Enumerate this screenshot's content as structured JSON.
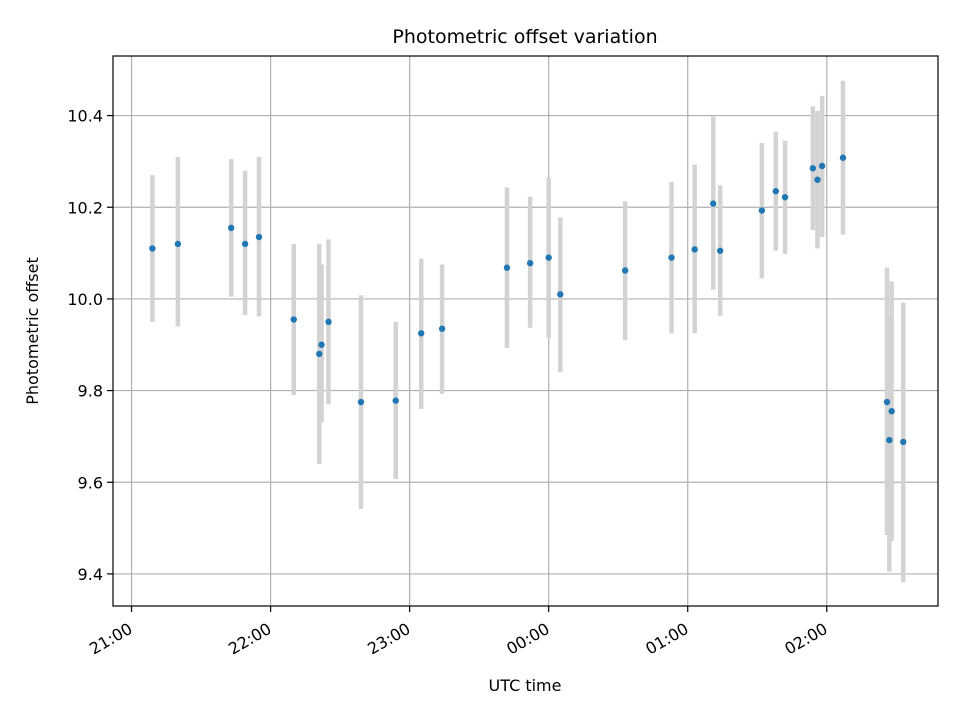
{
  "chart_data": {
    "type": "scatter",
    "title": "Photometric offset variation",
    "xlabel": "UTC time",
    "ylabel": "Photometric offset",
    "x_ticks": [
      "21:00",
      "22:00",
      "23:00",
      "00:00",
      "01:00",
      "02:00"
    ],
    "y_ticks": [
      "9.4",
      "9.6",
      "9.8",
      "10.0",
      "10.2",
      "10.4"
    ],
    "ylim": [
      9.33,
      10.53
    ],
    "xlim": [
      "20:52",
      "02:48"
    ],
    "grid": true,
    "colors": {
      "point": "#1f77b4",
      "errorbar": "#d3d3d3",
      "grid": "#b0b0b0"
    },
    "points": [
      {
        "x": "21:09",
        "y": 10.11,
        "lo": 9.95,
        "hi": 10.27
      },
      {
        "x": "21:20",
        "y": 10.12,
        "lo": 9.94,
        "hi": 10.31
      },
      {
        "x": "21:43",
        "y": 10.155,
        "lo": 10.005,
        "hi": 10.305
      },
      {
        "x": "21:49",
        "y": 10.12,
        "lo": 9.965,
        "hi": 10.28
      },
      {
        "x": "21:55",
        "y": 10.135,
        "lo": 9.962,
        "hi": 10.31
      },
      {
        "x": "22:10",
        "y": 9.955,
        "lo": 9.79,
        "hi": 10.12
      },
      {
        "x": "22:21",
        "y": 9.88,
        "lo": 9.64,
        "hi": 10.12
      },
      {
        "x": "22:22",
        "y": 9.9,
        "lo": 9.73,
        "hi": 10.075
      },
      {
        "x": "22:25",
        "y": 9.95,
        "lo": 9.77,
        "hi": 10.13
      },
      {
        "x": "22:39",
        "y": 9.775,
        "lo": 9.542,
        "hi": 10.008
      },
      {
        "x": "22:54",
        "y": 9.778,
        "lo": 9.607,
        "hi": 9.95
      },
      {
        "x": "23:05",
        "y": 9.925,
        "lo": 9.76,
        "hi": 10.088
      },
      {
        "x": "23:14",
        "y": 9.935,
        "lo": 9.793,
        "hi": 10.075
      },
      {
        "x": "23:42",
        "y": 10.068,
        "lo": 9.893,
        "hi": 10.243
      },
      {
        "x": "23:52",
        "y": 10.078,
        "lo": 9.937,
        "hi": 10.223
      },
      {
        "x": "00:00",
        "y": 10.09,
        "lo": 9.915,
        "hi": 10.265
      },
      {
        "x": "00:05",
        "y": 10.01,
        "lo": 9.84,
        "hi": 10.178
      },
      {
        "x": "00:33",
        "y": 10.062,
        "lo": 9.91,
        "hi": 10.213
      },
      {
        "x": "00:53",
        "y": 10.09,
        "lo": 9.925,
        "hi": 10.255
      },
      {
        "x": "01:03",
        "y": 10.108,
        "lo": 9.925,
        "hi": 10.293
      },
      {
        "x": "01:11",
        "y": 10.208,
        "lo": 10.02,
        "hi": 10.398
      },
      {
        "x": "01:14",
        "y": 10.105,
        "lo": 9.963,
        "hi": 10.248
      },
      {
        "x": "01:32",
        "y": 10.193,
        "lo": 10.045,
        "hi": 10.34
      },
      {
        "x": "01:38",
        "y": 10.235,
        "lo": 10.105,
        "hi": 10.365
      },
      {
        "x": "01:42",
        "y": 10.222,
        "lo": 10.098,
        "hi": 10.345
      },
      {
        "x": "01:54",
        "y": 10.285,
        "lo": 10.15,
        "hi": 10.42
      },
      {
        "x": "01:56",
        "y": 10.26,
        "lo": 10.11,
        "hi": 10.41
      },
      {
        "x": "01:58",
        "y": 10.29,
        "lo": 10.135,
        "hi": 10.443
      },
      {
        "x": "02:07",
        "y": 10.308,
        "lo": 10.14,
        "hi": 10.476
      },
      {
        "x": "02:26",
        "y": 9.775,
        "lo": 9.485,
        "hi": 10.068
      },
      {
        "x": "02:27",
        "y": 9.692,
        "lo": 9.405,
        "hi": 9.96
      },
      {
        "x": "02:28",
        "y": 9.755,
        "lo": 9.472,
        "hi": 10.038
      },
      {
        "x": "02:33",
        "y": 9.688,
        "lo": 9.382,
        "hi": 9.992
      }
    ]
  }
}
